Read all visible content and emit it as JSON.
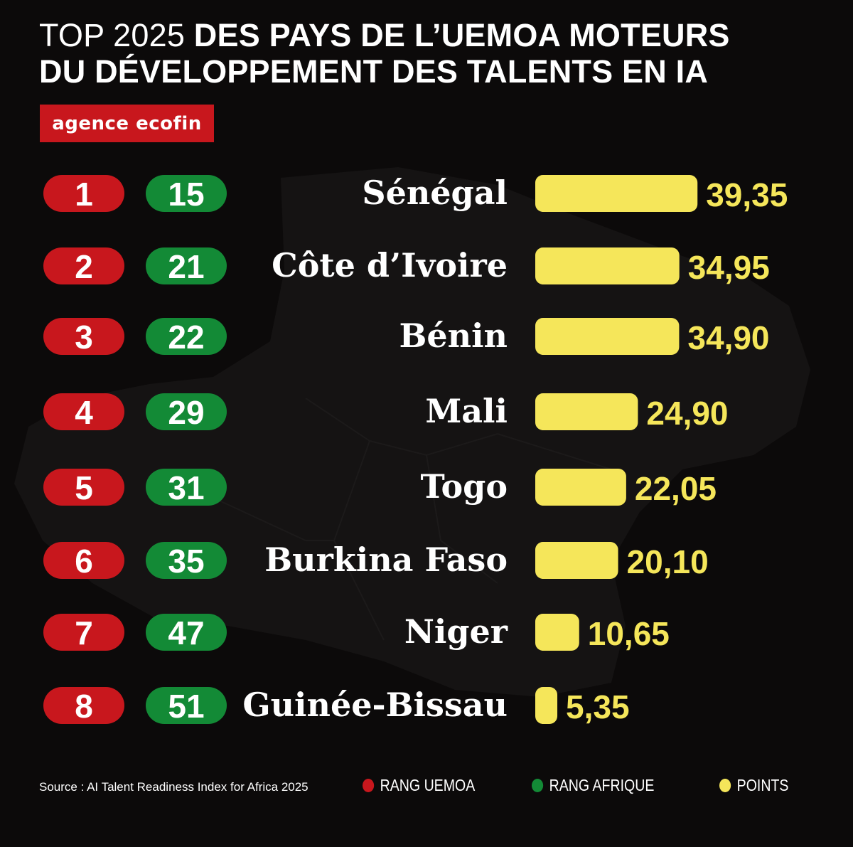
{
  "title": {
    "line1_light": "TOP  2025 ",
    "line1_bold": "DES PAYS  DE L’UEMOA MOTEURS",
    "line2_bold": "DU DÉVELOPPEMENT DES TALENTS EN IA"
  },
  "logo": "agence ecofin",
  "source": "Source : AI Talent Readiness Index for Africa 2025",
  "legend": {
    "uemoa": "RANG  UEMOA",
    "afrique": "RANG AFRIQUE",
    "points": "POINTS"
  },
  "colors": {
    "background": "#0c0a0a",
    "red": "#c8171d",
    "green": "#138a36",
    "yellow": "#f5e65a",
    "text": "#ffffff"
  },
  "chart_data": {
    "type": "bar",
    "orientation": "horizontal",
    "categories": [
      "Sénégal",
      "Côte d’Ivoire",
      "Bénin",
      "Mali",
      "Togo",
      "Burkina Faso",
      "Niger",
      "Guinée-Bissau"
    ],
    "rank_uemoa": [
      1,
      2,
      3,
      4,
      5,
      6,
      7,
      8
    ],
    "rank_afrique": [
      15,
      21,
      22,
      29,
      31,
      35,
      47,
      51
    ],
    "values": [
      39.35,
      34.95,
      34.9,
      24.9,
      22.05,
      20.1,
      10.65,
      5.35
    ],
    "value_labels": [
      "39,35",
      "34,95",
      "34,90",
      "24,90",
      "22,05",
      "20,10",
      "10,65",
      "5,35"
    ],
    "legend": [
      "RANG  UEMOA",
      "RANG AFRIQUE",
      "POINTS"
    ]
  }
}
